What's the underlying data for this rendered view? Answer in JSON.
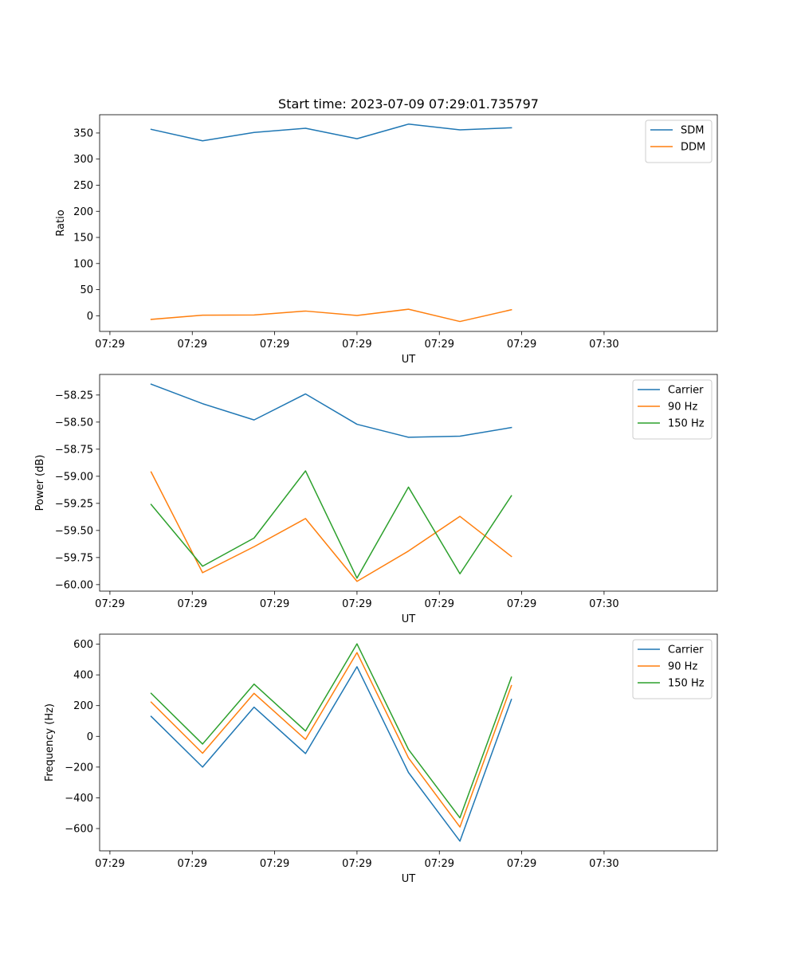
{
  "chart_data": [
    {
      "type": "line",
      "title": "Start time: 2023-07-09 07:29:01.735797",
      "xlabel": "UT",
      "ylabel": "Ratio",
      "xlim": [
        0,
        6
      ],
      "ylim": [
        -30,
        385
      ],
      "x_ticks": [
        0.1,
        0.9,
        1.7,
        2.5,
        3.3,
        4.1,
        4.9
      ],
      "x_tick_labels": [
        "07:29",
        "07:29",
        "07:29",
        "07:29",
        "07:29",
        "07:29",
        "07:30"
      ],
      "y_ticks": [
        0,
        50,
        100,
        150,
        200,
        250,
        300,
        350
      ],
      "y_tick_labels": [
        "0",
        "50",
        "100",
        "150",
        "200",
        "250",
        "300",
        "350"
      ],
      "x": [
        0.5,
        1.0,
        1.5,
        2.0,
        2.5,
        3.0,
        3.5,
        4.0
      ],
      "series": [
        {
          "name": "SDM",
          "color": "#1f77b4",
          "values": [
            357,
            335,
            351,
            359,
            339,
            367,
            356,
            360
          ]
        },
        {
          "name": "DDM",
          "color": "#ff7f0e",
          "values": [
            -7,
            1,
            1.5,
            9,
            0.5,
            12.5,
            -11,
            11.5
          ]
        }
      ],
      "legend": "top-right"
    },
    {
      "type": "line",
      "title": "",
      "xlabel": "UT",
      "ylabel": "Power (dB)",
      "xlim": [
        0,
        6
      ],
      "ylim": [
        -60.06,
        -58.06
      ],
      "x_ticks": [
        0.1,
        0.9,
        1.7,
        2.5,
        3.3,
        4.1,
        4.9
      ],
      "x_tick_labels": [
        "07:29",
        "07:29",
        "07:29",
        "07:29",
        "07:29",
        "07:29",
        "07:30"
      ],
      "y_ticks": [
        -60.0,
        -59.75,
        -59.5,
        -59.25,
        -59.0,
        -58.75,
        -58.5,
        -58.25
      ],
      "y_tick_labels": [
        "−60.00",
        "−59.75",
        "−59.50",
        "−59.25",
        "−59.00",
        "−58.75",
        "−58.50",
        "−58.25"
      ],
      "x": [
        0.5,
        1.0,
        1.5,
        2.0,
        2.5,
        3.0,
        3.5,
        4.0
      ],
      "series": [
        {
          "name": "Carrier",
          "color": "#1f77b4",
          "values": [
            -58.15,
            -58.33,
            -58.48,
            -58.24,
            -58.52,
            -58.64,
            -58.63,
            -58.55
          ]
        },
        {
          "name": "90 Hz",
          "color": "#ff7f0e",
          "values": [
            -58.96,
            -59.89,
            -59.65,
            -59.39,
            -59.97,
            -59.69,
            -59.37,
            -59.74
          ]
        },
        {
          "name": "150 Hz",
          "color": "#2ca02c",
          "values": [
            -59.26,
            -59.83,
            -59.57,
            -58.95,
            -59.94,
            -59.1,
            -59.9,
            -59.18
          ]
        }
      ],
      "legend": "top-right"
    },
    {
      "type": "line",
      "title": "",
      "xlabel": "UT",
      "ylabel": "Frequency (Hz)",
      "xlim": [
        0,
        6
      ],
      "ylim": [
        -745,
        665
      ],
      "x_ticks": [
        0.1,
        0.9,
        1.7,
        2.5,
        3.3,
        4.1,
        4.9
      ],
      "x_tick_labels": [
        "07:29",
        "07:29",
        "07:29",
        "07:29",
        "07:29",
        "07:29",
        "07:30"
      ],
      "y_ticks": [
        -600,
        -400,
        -200,
        0,
        200,
        400,
        600
      ],
      "y_tick_labels": [
        "−600",
        "−400",
        "−200",
        "0",
        "200",
        "400",
        "600"
      ],
      "x": [
        0.5,
        1.0,
        1.5,
        2.0,
        2.5,
        3.0,
        3.5,
        4.0
      ],
      "series": [
        {
          "name": "Carrier",
          "color": "#1f77b4",
          "values": [
            130,
            -200,
            190,
            -112,
            453,
            -235,
            -682,
            240
          ]
        },
        {
          "name": "90 Hz",
          "color": "#ff7f0e",
          "values": [
            223,
            -110,
            280,
            -20,
            545,
            -140,
            -590,
            330
          ]
        },
        {
          "name": "150 Hz",
          "color": "#2ca02c",
          "values": [
            280,
            -50,
            340,
            35,
            602,
            -85,
            -530,
            385
          ]
        }
      ],
      "legend": "top-right"
    }
  ]
}
